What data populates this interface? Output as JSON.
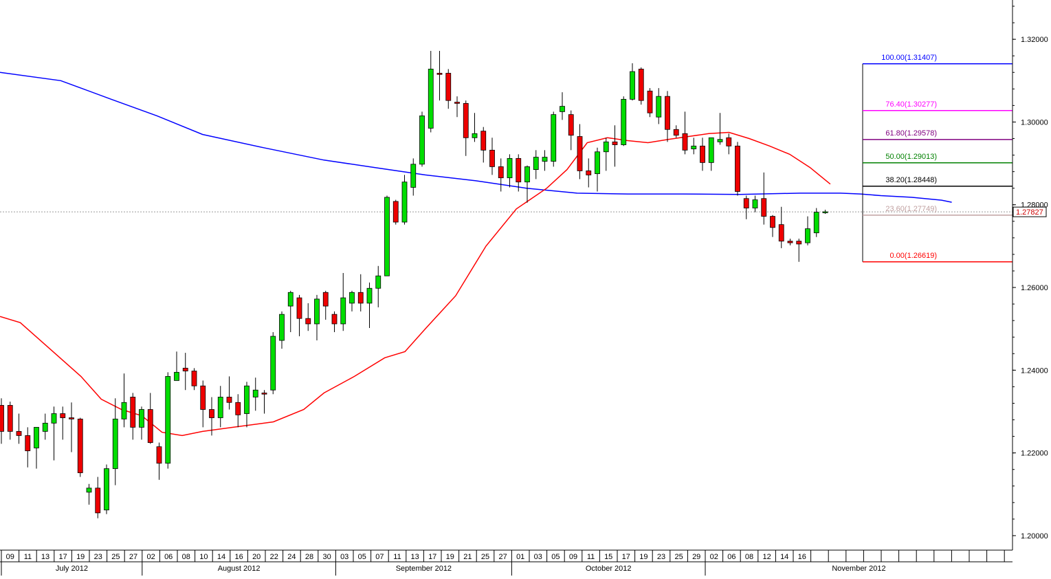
{
  "chart_data": {
    "type": "candlestick",
    "title": "",
    "xlabel": "",
    "ylabel": "",
    "ylim": [
      1.1965,
      1.3295
    ],
    "y_ticks": [
      "1.20000",
      "1.22000",
      "1.24000",
      "1.26000",
      "1.28000",
      "1.30000",
      "1.32000"
    ],
    "current_price": "1.27827",
    "x_ticks": [
      "09",
      "11",
      "13",
      "17",
      "19",
      "23",
      "25",
      "27",
      "02",
      "06",
      "08",
      "10",
      "14",
      "16",
      "20",
      "22",
      "24",
      "28",
      "30",
      "03",
      "05",
      "07",
      "11",
      "13",
      "17",
      "19",
      "21",
      "25",
      "27",
      "01",
      "03",
      "05",
      "09",
      "11",
      "15",
      "17",
      "19",
      "23",
      "25",
      "29",
      "02",
      "06",
      "08",
      "12",
      "14",
      "16"
    ],
    "months": [
      "July 2012",
      "August 2012",
      "September 2012",
      "October 2012",
      "November 2012"
    ],
    "candles": [
      {
        "o": 1.2315,
        "h": 1.2332,
        "l": 1.2222,
        "c": 1.2252
      },
      {
        "o": 1.2315,
        "h": 1.2324,
        "l": 1.2232,
        "c": 1.2252
      },
      {
        "o": 1.2252,
        "h": 1.2295,
        "l": 1.2222,
        "c": 1.2242
      },
      {
        "o": 1.2242,
        "h": 1.2262,
        "l": 1.2165,
        "c": 1.2205
      },
      {
        "o": 1.2212,
        "h": 1.2262,
        "l": 1.2162,
        "c": 1.2262
      },
      {
        "o": 1.2252,
        "h": 1.2295,
        "l": 1.2232,
        "c": 1.2272
      },
      {
        "o": 1.2272,
        "h": 1.2312,
        "l": 1.2182,
        "c": 1.2295
      },
      {
        "o": 1.2295,
        "h": 1.2312,
        "l": 1.2232,
        "c": 1.2285
      },
      {
        "o": 1.2285,
        "h": 1.2322,
        "l": 1.2202,
        "c": 1.2282
      },
      {
        "o": 1.2282,
        "h": 1.2285,
        "l": 1.2142,
        "c": 1.2152
      },
      {
        "o": 1.2105,
        "h": 1.2125,
        "l": 1.2075,
        "c": 1.2115
      },
      {
        "o": 1.2115,
        "h": 1.2142,
        "l": 1.2042,
        "c": 1.2055
      },
      {
        "o": 1.2062,
        "h": 1.2172,
        "l": 1.2052,
        "c": 1.2162
      },
      {
        "o": 1.2162,
        "h": 1.2332,
        "l": 1.2122,
        "c": 1.2282
      },
      {
        "o": 1.2282,
        "h": 1.2392,
        "l": 1.2262,
        "c": 1.2322
      },
      {
        "o": 1.2335,
        "h": 1.2345,
        "l": 1.2232,
        "c": 1.2262
      },
      {
        "o": 1.2262,
        "h": 1.2312,
        "l": 1.2232,
        "c": 1.2305
      },
      {
        "o": 1.2305,
        "h": 1.2345,
        "l": 1.2222,
        "c": 1.2225
      },
      {
        "o": 1.2215,
        "h": 1.2225,
        "l": 1.2135,
        "c": 1.2175
      },
      {
        "o": 1.2175,
        "h": 1.2395,
        "l": 1.2162,
        "c": 1.2385
      },
      {
        "o": 1.2375,
        "h": 1.2445,
        "l": 1.2375,
        "c": 1.2395
      },
      {
        "o": 1.2405,
        "h": 1.2442,
        "l": 1.2352,
        "c": 1.2398
      },
      {
        "o": 1.2398,
        "h": 1.2405,
        "l": 1.2352,
        "c": 1.2362
      },
      {
        "o": 1.2362,
        "h": 1.2375,
        "l": 1.2262,
        "c": 1.2305
      },
      {
        "o": 1.2305,
        "h": 1.2335,
        "l": 1.2242,
        "c": 1.2285
      },
      {
        "o": 1.2285,
        "h": 1.2362,
        "l": 1.2262,
        "c": 1.2335
      },
      {
        "o": 1.2335,
        "h": 1.2385,
        "l": 1.2305,
        "c": 1.2322
      },
      {
        "o": 1.2322,
        "h": 1.2342,
        "l": 1.2262,
        "c": 1.2292
      },
      {
        "o": 1.2295,
        "h": 1.2372,
        "l": 1.2262,
        "c": 1.2362
      },
      {
        "o": 1.2335,
        "h": 1.2382,
        "l": 1.2302,
        "c": 1.2352
      },
      {
        "o": 1.2345,
        "h": 1.2352,
        "l": 1.2295,
        "c": 1.2342
      },
      {
        "o": 1.2352,
        "h": 1.2492,
        "l": 1.2342,
        "c": 1.2482
      },
      {
        "o": 1.2472,
        "h": 1.2542,
        "l": 1.2452,
        "c": 1.2535
      },
      {
        "o": 1.2555,
        "h": 1.2592,
        "l": 1.2492,
        "c": 1.2588
      },
      {
        "o": 1.2575,
        "h": 1.2582,
        "l": 1.2482,
        "c": 1.2525
      },
      {
        "o": 1.2525,
        "h": 1.2562,
        "l": 1.2495,
        "c": 1.2512
      },
      {
        "o": 1.2512,
        "h": 1.2582,
        "l": 1.2472,
        "c": 1.2572
      },
      {
        "o": 1.2588,
        "h": 1.2592,
        "l": 1.2522,
        "c": 1.2555
      },
      {
        "o": 1.2535,
        "h": 1.2542,
        "l": 1.2492,
        "c": 1.2512
      },
      {
        "o": 1.2512,
        "h": 1.2635,
        "l": 1.2495,
        "c": 1.2575
      },
      {
        "o": 1.2562,
        "h": 1.2592,
        "l": 1.2542,
        "c": 1.2588
      },
      {
        "o": 1.2588,
        "h": 1.2632,
        "l": 1.2542,
        "c": 1.2562
      },
      {
        "o": 1.2562,
        "h": 1.2612,
        "l": 1.2502,
        "c": 1.2598
      },
      {
        "o": 1.2598,
        "h": 1.2652,
        "l": 1.2552,
        "c": 1.2628
      },
      {
        "o": 1.2628,
        "h": 1.2822,
        "l": 1.2628,
        "c": 1.2818
      },
      {
        "o": 1.2808,
        "h": 1.2812,
        "l": 1.2752,
        "c": 1.2758
      },
      {
        "o": 1.2758,
        "h": 1.2872,
        "l": 1.2752,
        "c": 1.2855
      },
      {
        "o": 1.2842,
        "h": 1.2912,
        "l": 1.2822,
        "c": 1.2898
      },
      {
        "o": 1.2898,
        "h": 1.3025,
        "l": 1.2892,
        "c": 1.3015
      },
      {
        "o": 1.2985,
        "h": 1.3172,
        "l": 1.2975,
        "c": 1.3128
      },
      {
        "o": 1.3118,
        "h": 1.3172,
        "l": 1.3052,
        "c": 1.3115
      },
      {
        "o": 1.3118,
        "h": 1.3128,
        "l": 1.3032,
        "c": 1.3052
      },
      {
        "o": 1.3048,
        "h": 1.3062,
        "l": 1.3012,
        "c": 1.3045
      },
      {
        "o": 1.3045,
        "h": 1.3052,
        "l": 1.2918,
        "c": 1.2962
      },
      {
        "o": 1.2962,
        "h": 1.3022,
        "l": 1.2952,
        "c": 1.2972
      },
      {
        "o": 1.2978,
        "h": 1.2988,
        "l": 1.2902,
        "c": 1.2932
      },
      {
        "o": 1.2932,
        "h": 1.2962,
        "l": 1.2872,
        "c": 1.2892
      },
      {
        "o": 1.2892,
        "h": 1.2912,
        "l": 1.2832,
        "c": 1.2865
      },
      {
        "o": 1.2865,
        "h": 1.2922,
        "l": 1.2842,
        "c": 1.2912
      },
      {
        "o": 1.2912,
        "h": 1.2922,
        "l": 1.2832,
        "c": 1.2855
      },
      {
        "o": 1.2855,
        "h": 1.2895,
        "l": 1.2805,
        "c": 1.2892
      },
      {
        "o": 1.2885,
        "h": 1.2932,
        "l": 1.2862,
        "c": 1.2915
      },
      {
        "o": 1.2905,
        "h": 1.2932,
        "l": 1.2882,
        "c": 1.2915
      },
      {
        "o": 1.2905,
        "h": 1.3025,
        "l": 1.2892,
        "c": 1.3018
      },
      {
        "o": 1.3025,
        "h": 1.3072,
        "l": 1.3005,
        "c": 1.3038
      },
      {
        "o": 1.3018,
        "h": 1.3028,
        "l": 1.2932,
        "c": 1.2968
      },
      {
        "o": 1.2965,
        "h": 1.2995,
        "l": 1.2862,
        "c": 1.2882
      },
      {
        "o": 1.2882,
        "h": 1.2912,
        "l": 1.2842,
        "c": 1.2872
      },
      {
        "o": 1.2875,
        "h": 1.2938,
        "l": 1.2832,
        "c": 1.2928
      },
      {
        "o": 1.2928,
        "h": 1.2962,
        "l": 1.2882,
        "c": 1.2952
      },
      {
        "o": 1.2952,
        "h": 1.2992,
        "l": 1.2892,
        "c": 1.2945
      },
      {
        "o": 1.2945,
        "h": 1.3062,
        "l": 1.2942,
        "c": 1.3055
      },
      {
        "o": 1.3055,
        "h": 1.3142,
        "l": 1.3052,
        "c": 1.3122
      },
      {
        "o": 1.3128,
        "h": 1.3132,
        "l": 1.3042,
        "c": 1.3052
      },
      {
        "o": 1.3075,
        "h": 1.3082,
        "l": 1.3012,
        "c": 1.3022
      },
      {
        "o": 1.3012,
        "h": 1.3082,
        "l": 1.2995,
        "c": 1.3062
      },
      {
        "o": 1.3062,
        "h": 1.3075,
        "l": 1.2952,
        "c": 1.2982
      },
      {
        "o": 1.2982,
        "h": 1.2992,
        "l": 1.2962,
        "c": 1.2968
      },
      {
        "o": 1.2972,
        "h": 1.3025,
        "l": 1.2922,
        "c": 1.2932
      },
      {
        "o": 1.2935,
        "h": 1.2962,
        "l": 1.2922,
        "c": 1.2942
      },
      {
        "o": 1.2942,
        "h": 1.2962,
        "l": 1.2882,
        "c": 1.2902
      },
      {
        "o": 1.2902,
        "h": 1.2962,
        "l": 1.2882,
        "c": 1.2962
      },
      {
        "o": 1.2952,
        "h": 1.3022,
        "l": 1.2945,
        "c": 1.2958
      },
      {
        "o": 1.2962,
        "h": 1.2972,
        "l": 1.2922,
        "c": 1.2942
      },
      {
        "o": 1.2942,
        "h": 1.2952,
        "l": 1.2822,
        "c": 1.2832
      },
      {
        "o": 1.2815,
        "h": 1.2822,
        "l": 1.2765,
        "c": 1.2792
      },
      {
        "o": 1.2792,
        "h": 1.2822,
        "l": 1.2782,
        "c": 1.2812
      },
      {
        "o": 1.2815,
        "h": 1.2878,
        "l": 1.2752,
        "c": 1.2772
      },
      {
        "o": 1.2772,
        "h": 1.2775,
        "l": 1.2722,
        "c": 1.2745
      },
      {
        "o": 1.2752,
        "h": 1.2795,
        "l": 1.2695,
        "c": 1.2712
      },
      {
        "o": 1.2712,
        "h": 1.2718,
        "l": 1.2702,
        "c": 1.2708
      },
      {
        "o": 1.2712,
        "h": 1.2718,
        "l": 1.2662,
        "c": 1.2705
      },
      {
        "o": 1.2708,
        "h": 1.2772,
        "l": 1.2702,
        "c": 1.2742
      },
      {
        "o": 1.2732,
        "h": 1.2792,
        "l": 1.2722,
        "c": 1.2782
      },
      {
        "o": 1.2782,
        "h": 1.2788,
        "l": 1.2778,
        "c": 1.2783
      }
    ],
    "ma_slow": [
      [
        0,
        1.312
      ],
      [
        0.06,
        1.31
      ],
      [
        0.11,
        1.3055
      ],
      [
        0.155,
        1.3015
      ],
      [
        0.2,
        1.297
      ],
      [
        0.26,
        1.2938
      ],
      [
        0.32,
        1.2908
      ],
      [
        0.37,
        1.289
      ],
      [
        0.42,
        1.2872
      ],
      [
        0.47,
        1.2858
      ],
      [
        0.52,
        1.284
      ],
      [
        0.57,
        1.2828
      ],
      [
        0.62,
        1.2826
      ],
      [
        0.675,
        1.2826
      ],
      [
        0.73,
        1.2825
      ],
      [
        0.79,
        1.2828
      ],
      [
        0.83,
        1.2828
      ],
      [
        0.85,
        1.2826
      ],
      [
        0.87,
        1.2822
      ],
      [
        0.9,
        1.2818
      ],
      [
        0.93,
        1.2811
      ],
      [
        0.94,
        1.2806
      ]
    ],
    "ma_fast": [
      [
        0,
        1.253
      ],
      [
        0.02,
        1.2515
      ],
      [
        0.05,
        1.245
      ],
      [
        0.08,
        1.2385
      ],
      [
        0.1,
        1.233
      ],
      [
        0.12,
        1.2305
      ],
      [
        0.14,
        1.229
      ],
      [
        0.16,
        1.225
      ],
      [
        0.18,
        1.2242
      ],
      [
        0.2,
        1.2252
      ],
      [
        0.23,
        1.2262
      ],
      [
        0.27,
        1.2275
      ],
      [
        0.3,
        1.2305
      ],
      [
        0.32,
        1.2345
      ],
      [
        0.35,
        1.2385
      ],
      [
        0.38,
        1.243
      ],
      [
        0.4,
        1.2445
      ],
      [
        0.42,
        1.25
      ],
      [
        0.45,
        1.258
      ],
      [
        0.48,
        1.27
      ],
      [
        0.51,
        1.279
      ],
      [
        0.54,
        1.284
      ],
      [
        0.56,
        1.2885
      ],
      [
        0.58,
        1.295
      ],
      [
        0.6,
        1.2962
      ],
      [
        0.62,
        1.2955
      ],
      [
        0.64,
        1.295
      ],
      [
        0.66,
        1.2958
      ],
      [
        0.68,
        1.2965
      ],
      [
        0.7,
        1.2972
      ],
      [
        0.72,
        1.2975
      ],
      [
        0.74,
        1.296
      ],
      [
        0.76,
        1.2942
      ],
      [
        0.78,
        1.2922
      ],
      [
        0.8,
        1.289
      ],
      [
        0.82,
        1.285
      ]
    ],
    "ma_fast_tail": [
      [
        0.82,
        1.285
      ]
    ],
    "fibonacci": [
      {
        "label": "100.00(1.31407)",
        "value": 1.31407,
        "color": "#0000ff"
      },
      {
        "label": "76.40(1.30277)",
        "value": 1.30277,
        "color": "#ff00ff"
      },
      {
        "label": "61.80(1.29578)",
        "value": 1.29578,
        "color": "#800080"
      },
      {
        "label": "50.00(1.29013)",
        "value": 1.29013,
        "color": "#008000"
      },
      {
        "label": "38.20(1.28448)",
        "value": 1.28448,
        "color": "#000000"
      },
      {
        "label": "23.60(1.27749)",
        "value": 1.27749,
        "color": "#c0a0a0"
      },
      {
        "label": "0.00(1.26619)",
        "value": 1.26619,
        "color": "#ff0000"
      }
    ],
    "colors": {
      "bull": "#00dd00",
      "bear": "#ee0000",
      "ma_slow": "#0000ff",
      "ma_fast": "#ff0000"
    }
  }
}
